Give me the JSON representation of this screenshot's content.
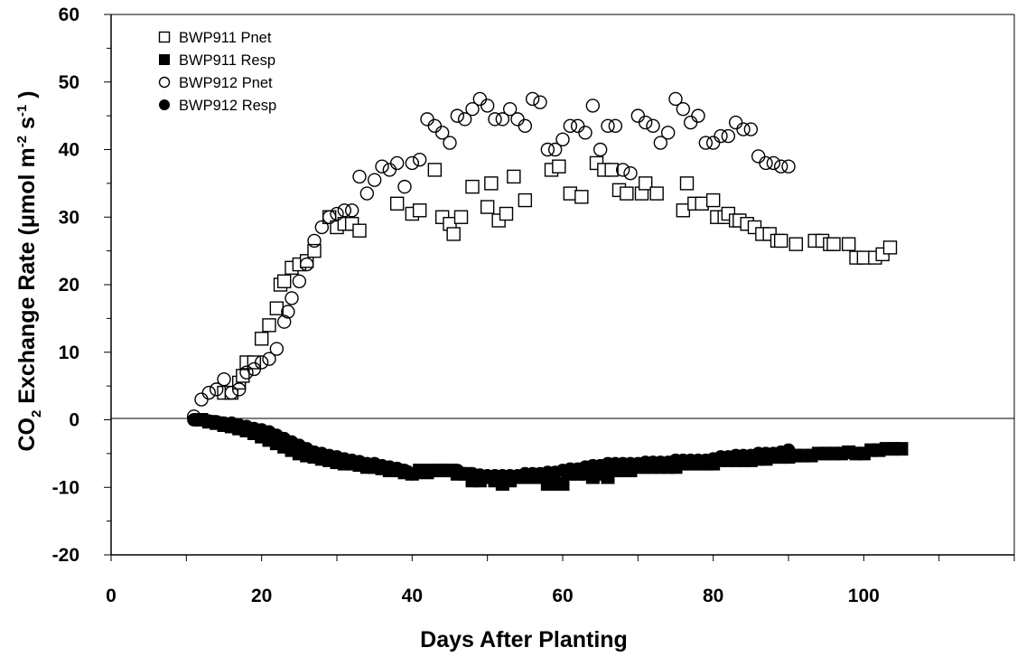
{
  "chart_data": {
    "type": "scatter",
    "xlabel": "Days After Planting",
    "ylabel_parts": [
      "CO",
      "2",
      " Exchange Rate (",
      "μ",
      "mol m",
      "-2",
      " s",
      "-1",
      " )"
    ],
    "xlim": [
      0,
      120
    ],
    "ylim": [
      -20,
      60
    ],
    "x_ticks": [
      0,
      20,
      40,
      60,
      80,
      100
    ],
    "y_ticks": [
      60,
      50,
      40,
      30,
      20,
      10,
      0,
      -10,
      -20
    ],
    "legend_position": "top-left",
    "grid": false,
    "series": [
      {
        "name": "BWP911 Pnet",
        "marker": "open-square",
        "x": [
          15,
          16,
          17,
          17.5,
          18,
          19,
          20,
          21,
          22,
          22.5,
          23,
          24,
          25,
          26,
          27,
          29,
          30,
          31,
          32,
          33,
          38,
          40,
          41,
          43,
          44,
          45,
          45.5,
          46.5,
          48,
          50,
          50.5,
          51.5,
          52.5,
          53.5,
          55,
          58.5,
          59.5,
          61,
          62.5,
          64.5,
          65.5,
          66.5,
          67.5,
          68.5,
          70.5,
          71,
          72.5,
          76,
          76.5,
          77.5,
          78.5,
          80,
          80.5,
          81.5,
          82,
          83,
          83.5,
          84.5,
          85.5,
          86.5,
          87.5,
          88.5,
          89,
          91,
          93.5,
          94.5,
          95.5,
          96,
          98,
          99,
          100,
          101.5,
          102.5,
          103.5
        ],
        "y": [
          4,
          4,
          5.5,
          6.5,
          8.5,
          8.5,
          12,
          14,
          16.5,
          20,
          20.5,
          22.5,
          23,
          23.5,
          25,
          30,
          28.5,
          29,
          29,
          28,
          32,
          30.5,
          31,
          37,
          30,
          29,
          27.5,
          30,
          34.5,
          31.5,
          35,
          29.5,
          30.5,
          36,
          32.5,
          37,
          37.5,
          33.5,
          33,
          38,
          37,
          37,
          34,
          33.5,
          33.5,
          35,
          33.5,
          31,
          35,
          32,
          32,
          32.5,
          30,
          30,
          30.5,
          29.5,
          29.5,
          29,
          28.5,
          27.5,
          27.5,
          26.5,
          26.5,
          26,
          26.5,
          26.5,
          26,
          26,
          26,
          24,
          24,
          24,
          24.5,
          25.5
        ]
      },
      {
        "name": "BWP911 Resp",
        "marker": "filled-square",
        "x": [
          12,
          13,
          14,
          15,
          16,
          17,
          18,
          19,
          20,
          21,
          22,
          23,
          24,
          25,
          26,
          27,
          28,
          29,
          30,
          31,
          32,
          33,
          34,
          35,
          36,
          37,
          38,
          39,
          40,
          41,
          42,
          43,
          44,
          45,
          46,
          47,
          48,
          49,
          50,
          51,
          52,
          53,
          54,
          55,
          56,
          57,
          58,
          59,
          60,
          61,
          62,
          63,
          64,
          65,
          66,
          67,
          68,
          69,
          70,
          71,
          72,
          73,
          74,
          75,
          76,
          77,
          78,
          79,
          80,
          81,
          82,
          83,
          84,
          85,
          86,
          87,
          88,
          89,
          90,
          91,
          92,
          93,
          94,
          95,
          96,
          97,
          98,
          99,
          100,
          101,
          102,
          103,
          104,
          105
        ],
        "y": [
          0,
          -0.3,
          -0.5,
          -0.8,
          -1,
          -1.3,
          -1.6,
          -2,
          -2.5,
          -3,
          -3.5,
          -4,
          -4.5,
          -5,
          -5.3,
          -5.5,
          -5.8,
          -6,
          -6.3,
          -6.5,
          -6.5,
          -6.7,
          -7,
          -7,
          -7.2,
          -7.5,
          -7.5,
          -7.8,
          -8,
          -7.5,
          -7.8,
          -7.5,
          -7.5,
          -7.5,
          -8,
          -8,
          -9,
          -9,
          -8.5,
          -9,
          -9.5,
          -9,
          -8.5,
          -8.5,
          -8.5,
          -8.5,
          -9.5,
          -9.5,
          -9.5,
          -8,
          -8,
          -8,
          -8.5,
          -8,
          -8.5,
          -7.5,
          -7.5,
          -7.5,
          -7,
          -7,
          -7,
          -7,
          -7,
          -7,
          -6.5,
          -6.5,
          -6.5,
          -6.5,
          -6.5,
          -6,
          -6,
          -6,
          -6,
          -6,
          -5.8,
          -5.8,
          -5.5,
          -5.5,
          -5.5,
          -5.3,
          -5.3,
          -5.3,
          -5,
          -5,
          -5,
          -5,
          -4.8,
          -5,
          -5,
          -4.5,
          -4.5,
          -4.3,
          -4.3,
          -4.3
        ]
      },
      {
        "name": "BWP912 Pnet",
        "marker": "open-circle",
        "x": [
          11,
          12,
          13,
          14,
          15,
          16,
          17,
          18,
          19,
          20,
          21,
          22,
          23,
          23.5,
          24,
          25,
          26,
          27,
          28,
          29,
          30,
          31,
          32,
          33,
          34,
          35,
          36,
          37,
          38,
          39,
          40,
          41,
          42,
          43,
          44,
          45,
          46,
          47,
          48,
          49,
          50,
          51,
          52,
          53,
          54,
          55,
          56,
          57,
          58,
          59,
          60,
          61,
          62,
          63,
          64,
          65,
          66,
          67,
          68,
          69,
          70,
          71,
          72,
          73,
          74,
          75,
          76,
          77,
          78,
          79,
          80,
          81,
          82,
          83,
          84,
          85,
          86,
          87,
          88,
          89,
          90
        ],
        "y": [
          0.5,
          3,
          4,
          4.5,
          6,
          4,
          4.5,
          7,
          7.5,
          8.5,
          9,
          10.5,
          14.5,
          16,
          18,
          20.5,
          23,
          26.5,
          28.5,
          30,
          30.5,
          31,
          31,
          36,
          33.5,
          35.5,
          37.5,
          37,
          38,
          34.5,
          38,
          38.5,
          44.5,
          43.5,
          42.5,
          41,
          45,
          44.5,
          46,
          47.5,
          46.5,
          44.5,
          44.5,
          46,
          44.5,
          43.5,
          47.5,
          47,
          40,
          40,
          41.5,
          43.5,
          43.5,
          42.5,
          46.5,
          40,
          43.5,
          43.5,
          37,
          36.5,
          45,
          44,
          43.5,
          41,
          42.5,
          47.5,
          46,
          44,
          45,
          41,
          41,
          42,
          42,
          44,
          43,
          43,
          39,
          38,
          38,
          37.5,
          37.5
        ]
      },
      {
        "name": "BWP912 Resp",
        "marker": "filled-circle",
        "x": [
          11,
          12,
          13,
          14,
          15,
          16,
          17,
          18,
          19,
          20,
          21,
          22,
          23,
          24,
          25,
          26,
          27,
          28,
          29,
          30,
          31,
          32,
          33,
          34,
          35,
          36,
          37,
          38,
          39,
          40,
          41,
          42,
          43,
          44,
          45,
          46,
          47,
          48,
          49,
          50,
          51,
          52,
          53,
          54,
          55,
          56,
          57,
          58,
          59,
          60,
          61,
          62,
          63,
          64,
          65,
          66,
          67,
          68,
          69,
          70,
          71,
          72,
          73,
          74,
          75,
          76,
          77,
          78,
          79,
          80,
          81,
          82,
          83,
          84,
          85,
          86,
          87,
          88,
          89,
          90
        ],
        "y": [
          0,
          0,
          -0.2,
          -0.3,
          -0.5,
          -0.5,
          -0.8,
          -1,
          -1.3,
          -1.5,
          -1.8,
          -2.3,
          -2.8,
          -3.3,
          -3.8,
          -4.3,
          -4.8,
          -5,
          -5.3,
          -5.5,
          -5.8,
          -6,
          -6.2,
          -6.5,
          -6.5,
          -6.8,
          -7,
          -7.2,
          -7.5,
          -8,
          -7.8,
          -7.5,
          -7.5,
          -7.5,
          -7.5,
          -7.5,
          -8,
          -8,
          -8.2,
          -8.3,
          -8.3,
          -8.3,
          -8.3,
          -8.3,
          -8,
          -8,
          -8,
          -7.8,
          -7.8,
          -7.5,
          -7.3,
          -7.3,
          -7,
          -6.8,
          -6.8,
          -6.5,
          -6.5,
          -6.5,
          -6.5,
          -6.5,
          -6.3,
          -6.3,
          -6.3,
          -6.3,
          -6,
          -6,
          -6,
          -6,
          -6,
          -5.8,
          -5.5,
          -5.5,
          -5.3,
          -5.3,
          -5.3,
          -5,
          -5,
          -5,
          -4.8,
          -4.5
        ]
      }
    ]
  }
}
